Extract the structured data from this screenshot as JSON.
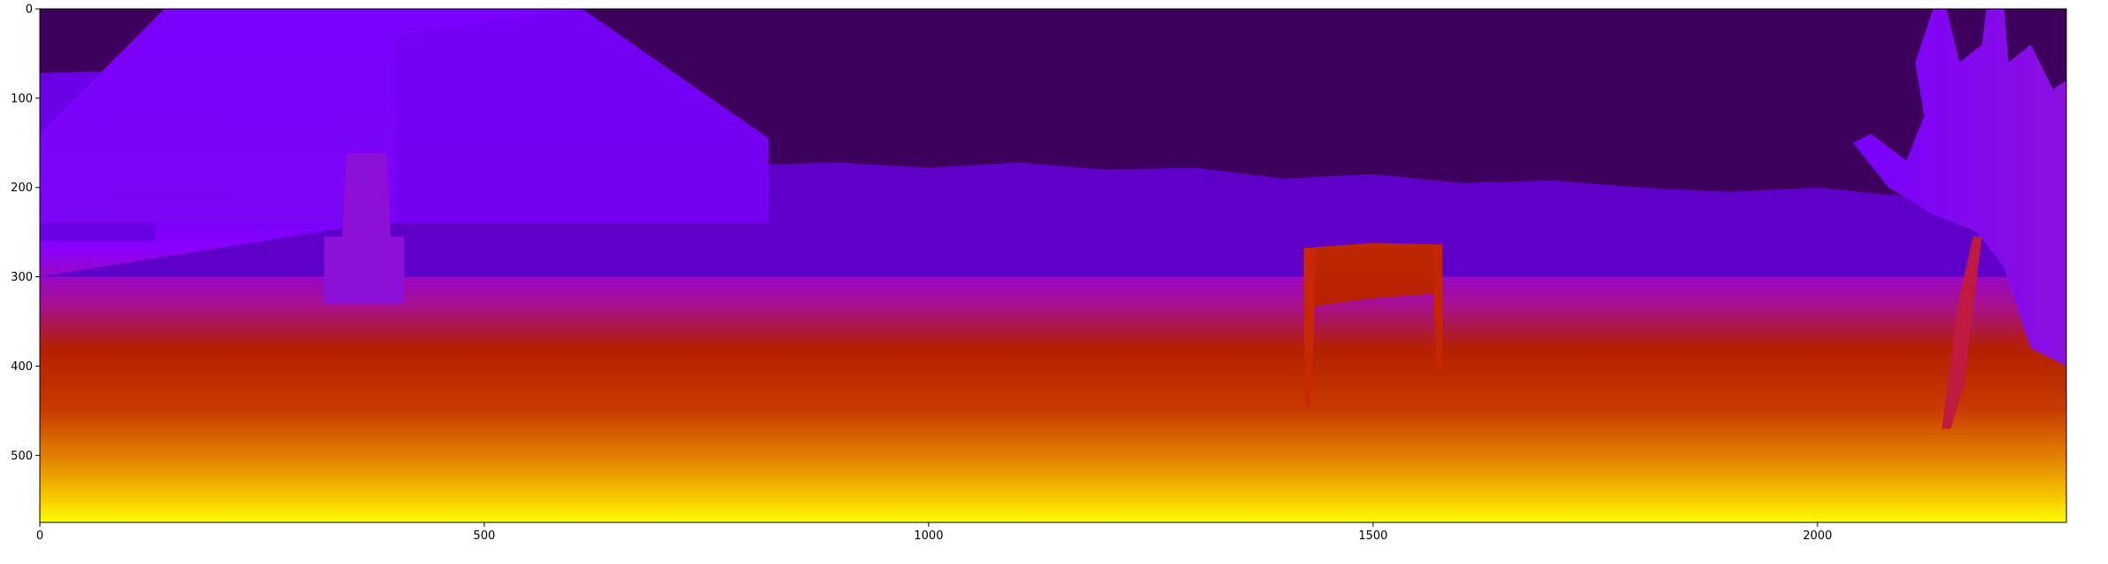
{
  "chart_data": {
    "type": "heatmap",
    "title": "",
    "xlabel": "",
    "ylabel": "",
    "image_width": 2280,
    "image_height": 575,
    "xlim": [
      0,
      2280
    ],
    "ylim": [
      575,
      0
    ],
    "x_ticks": [
      0,
      500,
      1000,
      1500,
      2000
    ],
    "y_ticks": [
      0,
      100,
      200,
      300,
      400,
      500
    ],
    "x_tick_labels": [
      "0",
      "500",
      "1000",
      "1500",
      "2000"
    ],
    "y_tick_labels": [
      "0",
      "100",
      "200",
      "300",
      "400",
      "500"
    ],
    "colormap": "gnuplot",
    "grid": false,
    "legend": "none",
    "colors": {
      "sky": "#3d005c",
      "far": "#7a00ff",
      "mid": "#b21e2a",
      "near": "#d65a00",
      "nearest": "#ffff00"
    }
  }
}
